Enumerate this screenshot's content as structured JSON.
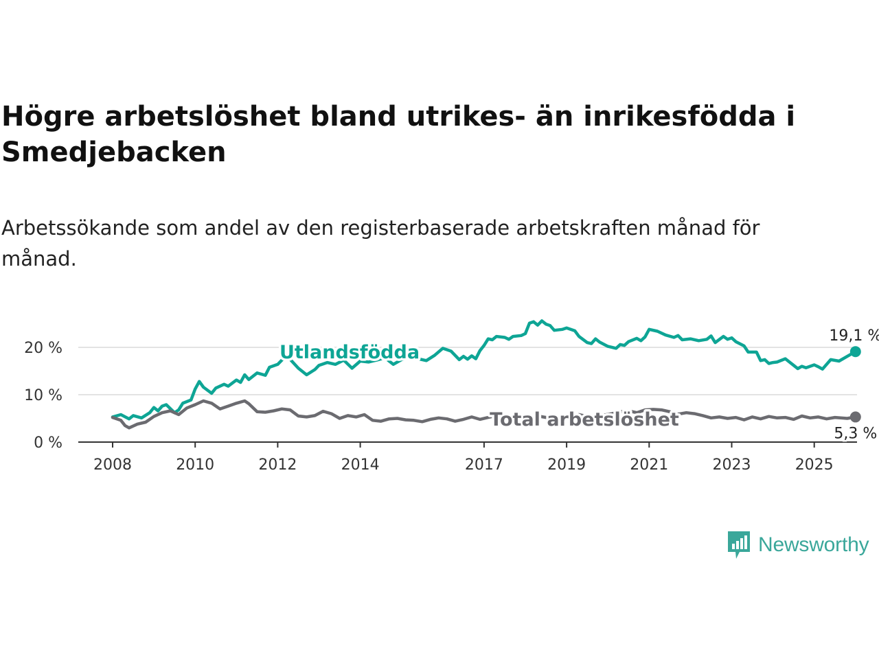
{
  "title": "Högre arbetslöshet bland utrikes- än inrikesfödda i Smedjebacken",
  "subtitle": "Arbetssökande som andel av den registerbaserade arbetskraften månad för månad.",
  "brand": {
    "name": "Newsworthy",
    "icon": "newsworthy-logo-icon"
  },
  "colors": {
    "utlandsfodda": "#0ea595",
    "total": "#6b6b70",
    "grid": "#e3e3e3",
    "axis": "#333333",
    "brand": "#3aa79a"
  },
  "chart_data": {
    "type": "line",
    "ylim": [
      0,
      25.5
    ],
    "xlim": [
      2008,
      2025.2
    ],
    "y_ticks": [
      {
        "value": 0,
        "label": "0 %"
      },
      {
        "value": 10,
        "label": "10 %"
      },
      {
        "value": 20,
        "label": "20 %"
      }
    ],
    "x_ticks": [
      {
        "value": 2008,
        "label": "2008"
      },
      {
        "value": 2010,
        "label": "2010"
      },
      {
        "value": 2012,
        "label": "2012"
      },
      {
        "value": 2014,
        "label": "2014"
      },
      {
        "value": 2017,
        "label": "2017"
      },
      {
        "value": 2019,
        "label": "2019"
      },
      {
        "value": 2021,
        "label": "2021"
      },
      {
        "value": 2023,
        "label": "2023"
      },
      {
        "value": 2025,
        "label": "2025"
      }
    ],
    "grid": true,
    "series": [
      {
        "name": "Utlandsfödda",
        "color": "#0ea595",
        "end_label": "19,1 %",
        "points": [
          [
            2008.0,
            5.3
          ],
          [
            2008.2,
            5.8
          ],
          [
            2008.4,
            4.9
          ],
          [
            2008.5,
            5.6
          ],
          [
            2008.7,
            5.1
          ],
          [
            2008.9,
            6.2
          ],
          [
            2009.0,
            7.3
          ],
          [
            2009.1,
            6.6
          ],
          [
            2009.2,
            7.6
          ],
          [
            2009.3,
            7.9
          ],
          [
            2009.5,
            6.2
          ],
          [
            2009.6,
            6.8
          ],
          [
            2009.7,
            8.2
          ],
          [
            2009.9,
            8.9
          ],
          [
            2010.0,
            11.2
          ],
          [
            2010.1,
            12.8
          ],
          [
            2010.2,
            11.6
          ],
          [
            2010.4,
            10.3
          ],
          [
            2010.5,
            11.4
          ],
          [
            2010.7,
            12.2
          ],
          [
            2010.8,
            11.8
          ],
          [
            2011.0,
            13.1
          ],
          [
            2011.1,
            12.6
          ],
          [
            2011.2,
            14.2
          ],
          [
            2011.3,
            13.2
          ],
          [
            2011.5,
            14.6
          ],
          [
            2011.7,
            14.1
          ],
          [
            2011.8,
            15.8
          ],
          [
            2012.0,
            16.4
          ],
          [
            2012.2,
            18.2
          ],
          [
            2012.3,
            17.5
          ],
          [
            2012.5,
            15.6
          ],
          [
            2012.7,
            14.2
          ],
          [
            2012.9,
            15.3
          ],
          [
            2013.0,
            16.2
          ],
          [
            2013.2,
            16.8
          ],
          [
            2013.4,
            16.4
          ],
          [
            2013.6,
            17.3
          ],
          [
            2013.8,
            15.6
          ],
          [
            2014.0,
            17.1
          ],
          [
            2014.2,
            16.9
          ],
          [
            2014.4,
            17.3
          ],
          [
            2014.6,
            17.8
          ],
          [
            2014.8,
            16.4
          ],
          [
            2015.0,
            17.4
          ],
          [
            2015.2,
            17.9
          ],
          [
            2015.4,
            17.6
          ],
          [
            2015.6,
            17.2
          ],
          [
            2015.8,
            18.3
          ],
          [
            2016.0,
            19.8
          ],
          [
            2016.2,
            19.2
          ],
          [
            2016.4,
            17.4
          ],
          [
            2016.5,
            18.1
          ],
          [
            2016.6,
            17.5
          ],
          [
            2016.7,
            18.2
          ],
          [
            2016.8,
            17.6
          ],
          [
            2016.9,
            19.3
          ],
          [
            2017.0,
            20.4
          ],
          [
            2017.1,
            21.8
          ],
          [
            2017.2,
            21.6
          ],
          [
            2017.3,
            22.3
          ],
          [
            2017.5,
            22.1
          ],
          [
            2017.6,
            21.7
          ],
          [
            2017.7,
            22.3
          ],
          [
            2017.9,
            22.5
          ],
          [
            2018.0,
            22.9
          ],
          [
            2018.1,
            25.1
          ],
          [
            2018.2,
            25.4
          ],
          [
            2018.3,
            24.7
          ],
          [
            2018.4,
            25.6
          ],
          [
            2018.5,
            24.9
          ],
          [
            2018.6,
            24.6
          ],
          [
            2018.7,
            23.6
          ],
          [
            2018.9,
            23.8
          ],
          [
            2019.0,
            24.1
          ],
          [
            2019.2,
            23.5
          ],
          [
            2019.3,
            22.3
          ],
          [
            2019.5,
            21.0
          ],
          [
            2019.6,
            20.8
          ],
          [
            2019.7,
            21.8
          ],
          [
            2019.8,
            21.1
          ],
          [
            2020.0,
            20.2
          ],
          [
            2020.2,
            19.8
          ],
          [
            2020.3,
            20.6
          ],
          [
            2020.4,
            20.4
          ],
          [
            2020.5,
            21.2
          ],
          [
            2020.7,
            21.9
          ],
          [
            2020.8,
            21.4
          ],
          [
            2020.9,
            22.2
          ],
          [
            2021.0,
            23.8
          ],
          [
            2021.2,
            23.4
          ],
          [
            2021.4,
            22.6
          ],
          [
            2021.6,
            22.1
          ],
          [
            2021.7,
            22.5
          ],
          [
            2021.8,
            21.6
          ],
          [
            2022.0,
            21.8
          ],
          [
            2022.2,
            21.4
          ],
          [
            2022.4,
            21.7
          ],
          [
            2022.5,
            22.4
          ],
          [
            2022.6,
            21.0
          ],
          [
            2022.8,
            22.3
          ],
          [
            2022.9,
            21.7
          ],
          [
            2023.0,
            22.0
          ],
          [
            2023.1,
            21.2
          ],
          [
            2023.3,
            20.3
          ],
          [
            2023.4,
            19.0
          ],
          [
            2023.6,
            19.0
          ],
          [
            2023.7,
            17.2
          ],
          [
            2023.8,
            17.4
          ],
          [
            2023.9,
            16.6
          ],
          [
            2024.0,
            16.8
          ],
          [
            2024.1,
            16.9
          ],
          [
            2024.3,
            17.6
          ],
          [
            2024.4,
            16.9
          ],
          [
            2024.5,
            16.2
          ],
          [
            2024.6,
            15.5
          ],
          [
            2024.7,
            16.0
          ],
          [
            2024.8,
            15.7
          ],
          [
            2025.0,
            16.3
          ],
          [
            2025.1,
            15.9
          ],
          [
            2025.2,
            15.4
          ],
          [
            2025.4,
            17.4
          ],
          [
            2025.6,
            17.1
          ],
          [
            2025.8,
            18.1
          ],
          [
            2026.0,
            19.1
          ]
        ]
      },
      {
        "name": "Total arbetslöshet",
        "color": "#6b6b70",
        "end_label": "5,3 %",
        "points": [
          [
            2008.0,
            5.2
          ],
          [
            2008.2,
            4.6
          ],
          [
            2008.3,
            3.5
          ],
          [
            2008.4,
            3.0
          ],
          [
            2008.6,
            3.8
          ],
          [
            2008.8,
            4.2
          ],
          [
            2009.0,
            5.4
          ],
          [
            2009.2,
            6.2
          ],
          [
            2009.4,
            6.6
          ],
          [
            2009.6,
            5.8
          ],
          [
            2009.8,
            7.2
          ],
          [
            2010.0,
            7.9
          ],
          [
            2010.2,
            8.7
          ],
          [
            2010.4,
            8.2
          ],
          [
            2010.6,
            7.0
          ],
          [
            2010.8,
            7.6
          ],
          [
            2011.0,
            8.2
          ],
          [
            2011.2,
            8.7
          ],
          [
            2011.3,
            8.1
          ],
          [
            2011.5,
            6.4
          ],
          [
            2011.7,
            6.3
          ],
          [
            2011.9,
            6.6
          ],
          [
            2012.1,
            7.0
          ],
          [
            2012.3,
            6.8
          ],
          [
            2012.5,
            5.5
          ],
          [
            2012.7,
            5.3
          ],
          [
            2012.9,
            5.6
          ],
          [
            2013.1,
            6.5
          ],
          [
            2013.3,
            6.0
          ],
          [
            2013.5,
            5.0
          ],
          [
            2013.7,
            5.6
          ],
          [
            2013.9,
            5.3
          ],
          [
            2014.1,
            5.8
          ],
          [
            2014.3,
            4.6
          ],
          [
            2014.5,
            4.4
          ],
          [
            2014.7,
            4.9
          ],
          [
            2014.9,
            5.0
          ],
          [
            2015.1,
            4.7
          ],
          [
            2015.3,
            4.6
          ],
          [
            2015.5,
            4.3
          ],
          [
            2015.7,
            4.8
          ],
          [
            2015.9,
            5.1
          ],
          [
            2016.1,
            4.9
          ],
          [
            2016.3,
            4.4
          ],
          [
            2016.5,
            4.8
          ],
          [
            2016.7,
            5.3
          ],
          [
            2016.9,
            4.8
          ],
          [
            2017.1,
            5.2
          ],
          [
            2017.3,
            5.6
          ],
          [
            2017.5,
            5.0
          ],
          [
            2017.7,
            5.3
          ],
          [
            2017.9,
            4.9
          ],
          [
            2018.1,
            5.3
          ],
          [
            2018.3,
            5.5
          ],
          [
            2018.5,
            5.2
          ],
          [
            2018.7,
            5.6
          ],
          [
            2018.9,
            5.0
          ],
          [
            2019.1,
            5.4
          ],
          [
            2019.3,
            5.8
          ],
          [
            2019.5,
            5.4
          ],
          [
            2019.7,
            5.2
          ],
          [
            2019.9,
            5.7
          ],
          [
            2020.1,
            6.0
          ],
          [
            2020.3,
            6.4
          ],
          [
            2020.5,
            6.6
          ],
          [
            2020.7,
            6.2
          ],
          [
            2020.9,
            6.8
          ],
          [
            2021.1,
            6.9
          ],
          [
            2021.3,
            6.8
          ],
          [
            2021.5,
            6.4
          ],
          [
            2021.7,
            5.9
          ],
          [
            2021.9,
            6.2
          ],
          [
            2022.1,
            6.0
          ],
          [
            2022.3,
            5.6
          ],
          [
            2022.5,
            5.1
          ],
          [
            2022.7,
            5.3
          ],
          [
            2022.9,
            5.0
          ],
          [
            2023.1,
            5.2
          ],
          [
            2023.3,
            4.7
          ],
          [
            2023.5,
            5.3
          ],
          [
            2023.7,
            4.9
          ],
          [
            2023.9,
            5.4
          ],
          [
            2024.1,
            5.1
          ],
          [
            2024.3,
            5.2
          ],
          [
            2024.5,
            4.8
          ],
          [
            2024.7,
            5.5
          ],
          [
            2024.9,
            5.1
          ],
          [
            2025.1,
            5.3
          ],
          [
            2025.3,
            4.9
          ],
          [
            2025.5,
            5.2
          ],
          [
            2025.8,
            5.0
          ],
          [
            2026.0,
            5.3
          ]
        ]
      }
    ]
  }
}
